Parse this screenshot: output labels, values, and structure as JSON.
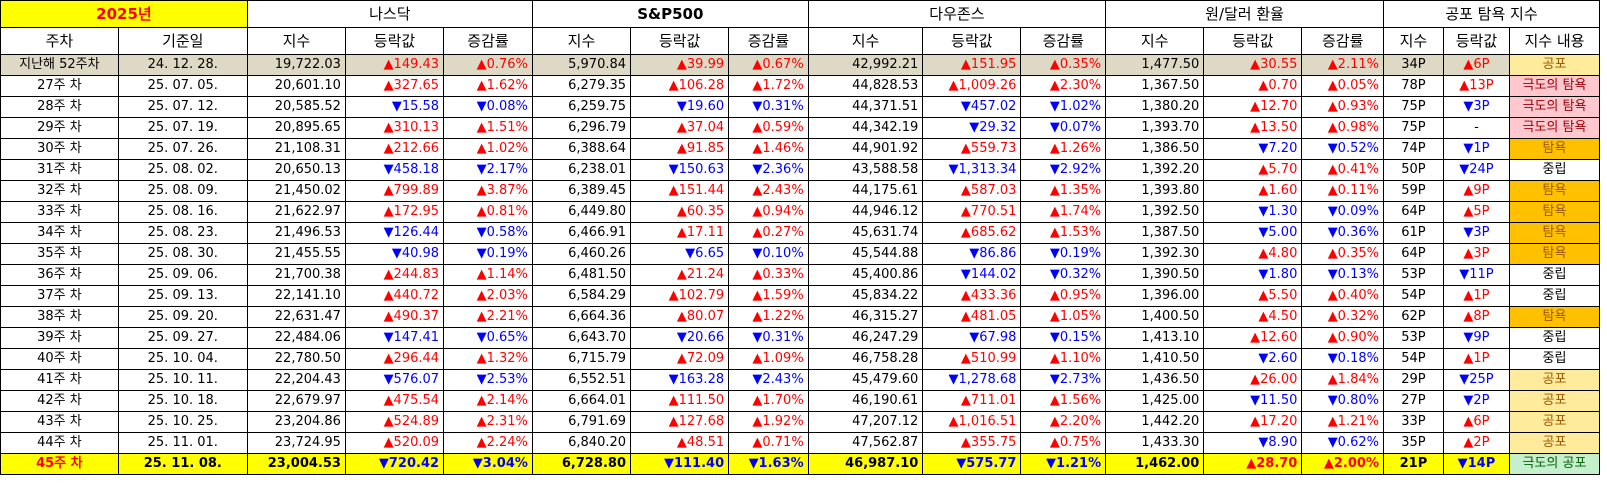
{
  "header": {
    "year": "2025년",
    "groups": [
      "나스닥",
      "S&P500",
      "다우존스",
      "원/달러 환율",
      "공포 탐욕 지수"
    ],
    "week_col": "주차",
    "date_col": "기준일",
    "sub": [
      "지수",
      "등락값",
      "증감률"
    ],
    "fg_sub": [
      "지수",
      "등락값",
      "지수 내용"
    ]
  },
  "rows": [
    {
      "week": "지난해 52주차",
      "date": "24. 12. 28.",
      "nq": "19,722.03",
      "nqc": "▲149.43",
      "nqp": "▲0.76%",
      "sp": "5,970.84",
      "spc": "▲39.99",
      "spp": "▲0.67%",
      "dj": "42,992.21",
      "djc": "▲151.95",
      "djp": "▲0.35%",
      "fx": "1,477.50",
      "fxc": "▲30.55",
      "fxp": "▲2.11%",
      "fg": "34P",
      "fgc": "▲6P",
      "fgl": "공포"
    },
    {
      "week": "27주 차",
      "date": "25. 07. 05.",
      "nq": "20,601.10",
      "nqc": "▲327.65",
      "nqp": "▲1.62%",
      "sp": "6,279.35",
      "spc": "▲106.28",
      "spp": "▲1.72%",
      "dj": "44,828.53",
      "djc": "▲1,009.26",
      "djp": "▲2.30%",
      "fx": "1,367.50",
      "fxc": "▲0.70",
      "fxp": "▲0.05%",
      "fg": "78P",
      "fgc": "▲13P",
      "fgl": "극도의 탐욕"
    },
    {
      "week": "28주 차",
      "date": "25. 07. 12.",
      "nq": "20,585.52",
      "nqc": "▼15.58",
      "nqp": "▼0.08%",
      "sp": "6,259.75",
      "spc": "▼19.60",
      "spp": "▼0.31%",
      "dj": "44,371.51",
      "djc": "▼457.02",
      "djp": "▼1.02%",
      "fx": "1,380.20",
      "fxc": "▲12.70",
      "fxp": "▲0.93%",
      "fg": "75P",
      "fgc": "▼3P",
      "fgl": "극도의 탐욕"
    },
    {
      "week": "29주 차",
      "date": "25. 07. 19.",
      "nq": "20,895.65",
      "nqc": "▲310.13",
      "nqp": "▲1.51%",
      "sp": "6,296.79",
      "spc": "▲37.04",
      "spp": "▲0.59%",
      "dj": "44,342.19",
      "djc": "▼29.32",
      "djp": "▼0.07%",
      "fx": "1,393.70",
      "fxc": "▲13.50",
      "fxp": "▲0.98%",
      "fg": "75P",
      "fgc": "-",
      "fgl": "극도의 탐욕"
    },
    {
      "week": "30주 차",
      "date": "25. 07. 26.",
      "nq": "21,108.31",
      "nqc": "▲212.66",
      "nqp": "▲1.02%",
      "sp": "6,388.64",
      "spc": "▲91.85",
      "spp": "▲1.46%",
      "dj": "44,901.92",
      "djc": "▲559.73",
      "djp": "▲1.26%",
      "fx": "1,386.50",
      "fxc": "▼7.20",
      "fxp": "▼0.52%",
      "fg": "74P",
      "fgc": "▼1P",
      "fgl": "탐욕"
    },
    {
      "week": "31주 차",
      "date": "25. 08. 02.",
      "nq": "20,650.13",
      "nqc": "▼458.18",
      "nqp": "▼2.17%",
      "sp": "6,238.01",
      "spc": "▼150.63",
      "spp": "▼2.36%",
      "dj": "43,588.58",
      "djc": "▼1,313.34",
      "djp": "▼2.92%",
      "fx": "1,392.20",
      "fxc": "▲5.70",
      "fxp": "▲0.41%",
      "fg": "50P",
      "fgc": "▼24P",
      "fgl": "중립"
    },
    {
      "week": "32주 차",
      "date": "25. 08. 09.",
      "nq": "21,450.02",
      "nqc": "▲799.89",
      "nqp": "▲3.87%",
      "sp": "6,389.45",
      "spc": "▲151.44",
      "spp": "▲2.43%",
      "dj": "44,175.61",
      "djc": "▲587.03",
      "djp": "▲1.35%",
      "fx": "1,393.80",
      "fxc": "▲1.60",
      "fxp": "▲0.11%",
      "fg": "59P",
      "fgc": "▲9P",
      "fgl": "탐욕"
    },
    {
      "week": "33주 차",
      "date": "25. 08. 16.",
      "nq": "21,622.97",
      "nqc": "▲172.95",
      "nqp": "▲0.81%",
      "sp": "6,449.80",
      "spc": "▲60.35",
      "spp": "▲0.94%",
      "dj": "44,946.12",
      "djc": "▲770.51",
      "djp": "▲1.74%",
      "fx": "1,392.50",
      "fxc": "▼1.30",
      "fxp": "▼0.09%",
      "fg": "64P",
      "fgc": "▲5P",
      "fgl": "탐욕"
    },
    {
      "week": "34주 차",
      "date": "25. 08. 23.",
      "nq": "21,496.53",
      "nqc": "▼126.44",
      "nqp": "▼0.58%",
      "sp": "6,466.91",
      "spc": "▲17.11",
      "spp": "▲0.27%",
      "dj": "45,631.74",
      "djc": "▲685.62",
      "djp": "▲1.53%",
      "fx": "1,387.50",
      "fxc": "▼5.00",
      "fxp": "▼0.36%",
      "fg": "61P",
      "fgc": "▼3P",
      "fgl": "탐욕"
    },
    {
      "week": "35주 차",
      "date": "25. 08. 30.",
      "nq": "21,455.55",
      "nqc": "▼40.98",
      "nqp": "▼0.19%",
      "sp": "6,460.26",
      "spc": "▼6.65",
      "spp": "▼0.10%",
      "dj": "45,544.88",
      "djc": "▼86.86",
      "djp": "▼0.19%",
      "fx": "1,392.30",
      "fxc": "▲4.80",
      "fxp": "▲0.35%",
      "fg": "64P",
      "fgc": "▲3P",
      "fgl": "탐욕"
    },
    {
      "week": "36주 차",
      "date": "25. 09. 06.",
      "nq": "21,700.38",
      "nqc": "▲244.83",
      "nqp": "▲1.14%",
      "sp": "6,481.50",
      "spc": "▲21.24",
      "spp": "▲0.33%",
      "dj": "45,400.86",
      "djc": "▼144.02",
      "djp": "▼0.32%",
      "fx": "1,390.50",
      "fxc": "▼1.80",
      "fxp": "▼0.13%",
      "fg": "53P",
      "fgc": "▼11P",
      "fgl": "중립"
    },
    {
      "week": "37주 차",
      "date": "25. 09. 13.",
      "nq": "22,141.10",
      "nqc": "▲440.72",
      "nqp": "▲2.03%",
      "sp": "6,584.29",
      "spc": "▲102.79",
      "spp": "▲1.59%",
      "dj": "45,834.22",
      "djc": "▲433.36",
      "djp": "▲0.95%",
      "fx": "1,396.00",
      "fxc": "▲5.50",
      "fxp": "▲0.40%",
      "fg": "54P",
      "fgc": "▲1P",
      "fgl": "중립"
    },
    {
      "week": "38주 차",
      "date": "25. 09. 20.",
      "nq": "22,631.47",
      "nqc": "▲490.37",
      "nqp": "▲2.21%",
      "sp": "6,664.36",
      "spc": "▲80.07",
      "spp": "▲1.22%",
      "dj": "46,315.27",
      "djc": "▲481.05",
      "djp": "▲1.05%",
      "fx": "1,400.50",
      "fxc": "▲4.50",
      "fxp": "▲0.32%",
      "fg": "62P",
      "fgc": "▲8P",
      "fgl": "탐욕"
    },
    {
      "week": "39주 차",
      "date": "25. 09. 27.",
      "nq": "22,484.06",
      "nqc": "▼147.41",
      "nqp": "▼0.65%",
      "sp": "6,643.70",
      "spc": "▼20.66",
      "spp": "▼0.31%",
      "dj": "46,247.29",
      "djc": "▼67.98",
      "djp": "▼0.15%",
      "fx": "1,413.10",
      "fxc": "▲12.60",
      "fxp": "▲0.90%",
      "fg": "53P",
      "fgc": "▼9P",
      "fgl": "중립"
    },
    {
      "week": "40주 차",
      "date": "25. 10. 04.",
      "nq": "22,780.50",
      "nqc": "▲296.44",
      "nqp": "▲1.32%",
      "sp": "6,715.79",
      "spc": "▲72.09",
      "spp": "▲1.09%",
      "dj": "46,758.28",
      "djc": "▲510.99",
      "djp": "▲1.10%",
      "fx": "1,410.50",
      "fxc": "▼2.60",
      "fxp": "▼0.18%",
      "fg": "54P",
      "fgc": "▲1P",
      "fgl": "중립"
    },
    {
      "week": "41주 차",
      "date": "25. 10. 11.",
      "nq": "22,204.43",
      "nqc": "▼576.07",
      "nqp": "▼2.53%",
      "sp": "6,552.51",
      "spc": "▼163.28",
      "spp": "▼2.43%",
      "dj": "45,479.60",
      "djc": "▼1,278.68",
      "djp": "▼2.73%",
      "fx": "1,436.50",
      "fxc": "▲26.00",
      "fxp": "▲1.84%",
      "fg": "29P",
      "fgc": "▼25P",
      "fgl": "공포"
    },
    {
      "week": "42주 차",
      "date": "25. 10. 18.",
      "nq": "22,679.97",
      "nqc": "▲475.54",
      "nqp": "▲2.14%",
      "sp": "6,664.01",
      "spc": "▲111.50",
      "spp": "▲1.70%",
      "dj": "46,190.61",
      "djc": "▲711.01",
      "djp": "▲1.56%",
      "fx": "1,425.00",
      "fxc": "▼11.50",
      "fxp": "▼0.80%",
      "fg": "27P",
      "fgc": "▼2P",
      "fgl": "공포"
    },
    {
      "week": "43주 차",
      "date": "25. 10. 25.",
      "nq": "23,204.86",
      "nqc": "▲524.89",
      "nqp": "▲2.31%",
      "sp": "6,791.69",
      "spc": "▲127.68",
      "spp": "▲1.92%",
      "dj": "47,207.12",
      "djc": "▲1,016.51",
      "djp": "▲2.20%",
      "fx": "1,442.20",
      "fxc": "▲17.20",
      "fxp": "▲1.21%",
      "fg": "33P",
      "fgc": "▲6P",
      "fgl": "공포"
    },
    {
      "week": "44주 차",
      "date": "25. 11. 01.",
      "nq": "23,724.95",
      "nqc": "▲520.09",
      "nqp": "▲2.24%",
      "sp": "6,840.20",
      "spc": "▲48.51",
      "spp": "▲0.71%",
      "dj": "47,562.87",
      "djc": "▲355.75",
      "djp": "▲0.75%",
      "fx": "1,433.30",
      "fxc": "▼8.90",
      "fxp": "▼0.62%",
      "fg": "35P",
      "fgc": "▲2P",
      "fgl": "공포"
    },
    {
      "week": "45주 차",
      "date": "25. 11. 08.",
      "nq": "23,004.53",
      "nqc": "▼720.42",
      "nqp": "▼3.04%",
      "sp": "6,728.80",
      "spc": "▼111.40",
      "spp": "▼1.63%",
      "dj": "46,987.10",
      "djc": "▼575.77",
      "djp": "▼1.21%",
      "fx": "1,462.00",
      "fxc": "▲28.70",
      "fxp": "▲2.00%",
      "fg": "21P",
      "fgc": "▼14P",
      "fgl": "극도의 공포"
    }
  ],
  "colors": {
    "up": "#ff0000",
    "down": "#0000ff",
    "highlight": "#ffff00"
  }
}
